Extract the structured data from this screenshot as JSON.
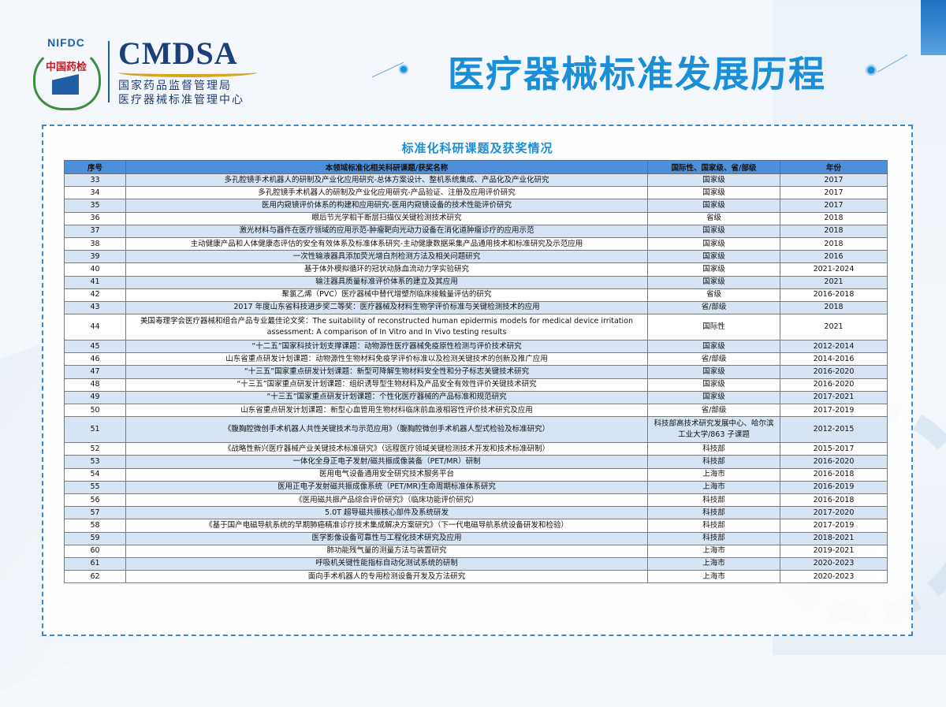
{
  "header": {
    "logo_nifdc": "NIFDC",
    "logo_cn": "中国药检",
    "brand": "CMDSA",
    "org_line1": "国家药品监督管理局",
    "org_line2": "医疗器械标准管理中心",
    "title": "医疗器械标准发展历程"
  },
  "section_title": "标准化科研课题及获奖情况",
  "table": {
    "headers": [
      "序号",
      "本领域标准化相关科研课题/获奖名称",
      "国际性、国家级、省/部级",
      "年份"
    ],
    "rows": [
      [
        "33",
        "多孔腔镜手术机器人的研制及产业化应用研究-总体方案设计、整机系统集成、产品化及产业化研究",
        "国家级",
        "2017"
      ],
      [
        "34",
        "多孔腔镜手术机器人的研制及产业化应用研究-产品验证、注册及应用评价研究",
        "国家级",
        "2017"
      ],
      [
        "35",
        "医用内窥镜评价体系的构建和应用研究-医用内窥镜设备的技术性能评价研究",
        "国家级",
        "2017"
      ],
      [
        "36",
        "眼后节光学相干断层扫描仪关键检测技术研究",
        "省级",
        "2018"
      ],
      [
        "37",
        "激光材料与器件在医疗领域的应用示范-肿瘤靶向光动力设备在消化道肿瘤诊疗的应用示范",
        "国家级",
        "2018"
      ],
      [
        "38",
        "主动健康产品和人体健康态评估的安全有效体系及标准体系研究-主动健康数据采集产品通用技术和标准研究及示范应用",
        "国家级",
        "2018"
      ],
      [
        "39",
        "一次性输液器具添加荧光增白剂检测方法及相关问题研究",
        "国家级",
        "2016"
      ],
      [
        "40",
        "基于体外模拟循环的冠状动脉血流动力学实验研究",
        "国家级",
        "2021-2024"
      ],
      [
        "41",
        "输注器具质量标准评价体系的建立及其应用",
        "国家级",
        "2021"
      ],
      [
        "42",
        "聚氯乙烯（PVC）医疗器械中替代增塑剂临床接触量评估的研究",
        "省级",
        "2016-2018"
      ],
      [
        "43",
        "2017 年度山东省科技进步奖二等奖：医疗器械及材料生物学评价标准与关键检测技术的应用",
        "省/部级",
        "2018"
      ],
      [
        "44",
        "美国毒理学会医疗器械和组合产品专业最佳论文奖：The suitability of reconstructed human epidermis models for medical device irritation assessment: A comparison of In Vitro and In Vivo testing results",
        "国际性",
        "2021"
      ],
      [
        "45",
        "“十二五”国家科技计划支撑课题：动物源性医疗器械免疫原性检测与评价技术研究",
        "国家级",
        "2012-2014"
      ],
      [
        "46",
        "山东省重点研发计划课题：动物源性生物材料免疫学评价标准以及检测关键技术的创新及推广应用",
        "省/部级",
        "2014-2016"
      ],
      [
        "47",
        "“十三五”国家重点研发计划课题：新型可降解生物材料安全性和分子标志关键技术研究",
        "国家级",
        "2016-2020"
      ],
      [
        "48",
        "“十三五”国家重点研发计划课题：组织诱导型生物材料及产品安全有效性评价关键技术研究",
        "国家级",
        "2016-2020"
      ],
      [
        "49",
        "“十三五”国家重点研发计划课题：个性化医疗器械的产品标准和规范研究",
        "国家级",
        "2017-2021"
      ],
      [
        "50",
        "山东省重点研发计划课题：新型心血管用生物材料临床前血液相容性评价技术研究及应用",
        "省/部级",
        "2017-2019"
      ],
      [
        "51",
        "《腹胸腔微创手术机器人共性关键技术与示范应用》（腹胸腔微创手术机器人型式检验及标准研究）",
        "科技部高技术研究发展中心、哈尔滨工业大学/863 子课题",
        "2012-2015"
      ],
      [
        "52",
        "《战略性新兴医疗器械产业关键技术标准研究》（远程医疗领域关键检测技术开发和技术标准研制）",
        "科技部",
        "2015-2017"
      ],
      [
        "53",
        "一体化全身正电子发射/磁共振成像装备（PET/MR）研制",
        "科技部",
        "2016-2020"
      ],
      [
        "54",
        "医用电气设备通用安全研究技术服务平台",
        "上海市",
        "2016-2018"
      ],
      [
        "55",
        "医用正电子发射磁共振成像系统（PET/MR)生命周期标准体系研究",
        "上海市",
        "2016-2019"
      ],
      [
        "56",
        "《医用磁共振产品综合评价研究》（临床功能评价研究）",
        "科技部",
        "2016-2018"
      ],
      [
        "57",
        "5.0T 超导磁共振核心部件及系统研发",
        "科技部",
        "2017-2020"
      ],
      [
        "58",
        "《基于国产电磁导航系统的早期肺癌精准诊疗技术集成解决方案研究》（下一代电磁导航系统设备研发和检验）",
        "科技部",
        "2017-2019"
      ],
      [
        "59",
        "医学影像设备可靠性与工程化技术研究及应用",
        "科技部",
        "2018-2021"
      ],
      [
        "60",
        "肺功能残气量的测量方法与装置研究",
        "上海市",
        "2019-2021"
      ],
      [
        "61",
        "呼吸机关键性能指标自动化测试系统的研制",
        "上海市",
        "2020-2023"
      ],
      [
        "62",
        "面向手术机器人的专用检测设备开发及方法研究",
        "上海市",
        "2020-2023"
      ]
    ]
  }
}
